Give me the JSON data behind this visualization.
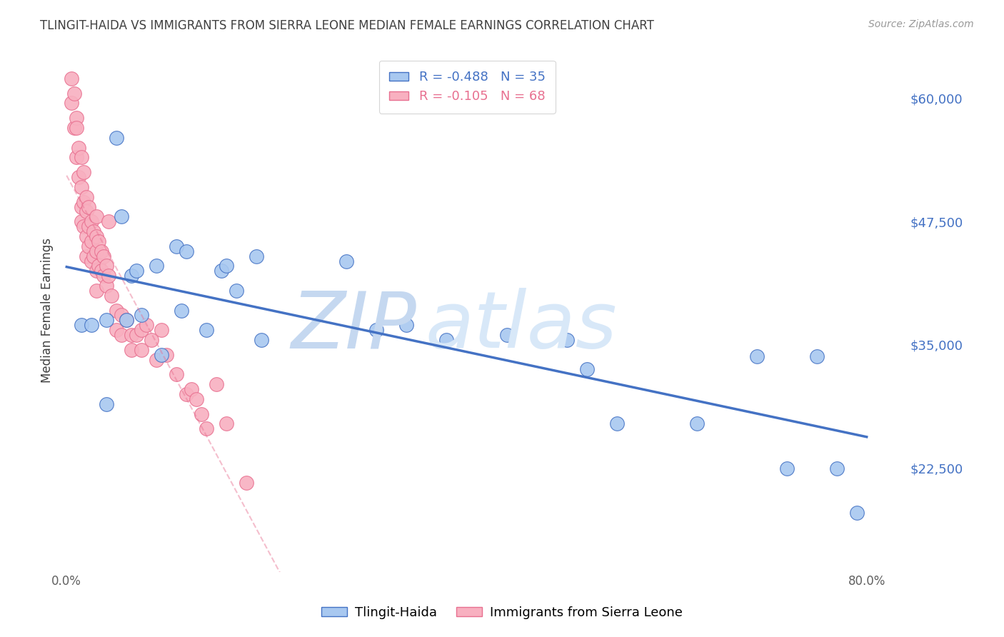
{
  "title": "TLINGIT-HAIDA VS IMMIGRANTS FROM SIERRA LEONE MEDIAN FEMALE EARNINGS CORRELATION CHART",
  "source": "Source: ZipAtlas.com",
  "ylabel": "Median Female Earnings",
  "y_tick_labels": [
    "$22,500",
    "$35,000",
    "$47,500",
    "$60,000"
  ],
  "y_tick_values": [
    22500,
    35000,
    47500,
    60000
  ],
  "ylim": [
    12000,
    65000
  ],
  "xlim": [
    -0.005,
    0.84
  ],
  "x_tick_labels": [
    "0.0%",
    "",
    "",
    "",
    "",
    "",
    "",
    "",
    "80.0%"
  ],
  "x_tick_values": [
    0.0,
    0.1,
    0.2,
    0.3,
    0.4,
    0.5,
    0.6,
    0.7,
    0.8
  ],
  "legend_entries": [
    {
      "label": "R = -0.488   N = 35",
      "color": "#a8c8f0"
    },
    {
      "label": "R = -0.105   N = 68",
      "color": "#f8b0c0"
    }
  ],
  "legend_bottom": [
    "Tlingit-Haida",
    "Immigrants from Sierra Leone"
  ],
  "blue_scatter_x": [
    0.015,
    0.025,
    0.04,
    0.04,
    0.05,
    0.055,
    0.06,
    0.065,
    0.07,
    0.075,
    0.09,
    0.095,
    0.11,
    0.115,
    0.12,
    0.14,
    0.155,
    0.16,
    0.17,
    0.19,
    0.195,
    0.28,
    0.31,
    0.34,
    0.38,
    0.44,
    0.5,
    0.52,
    0.55,
    0.63,
    0.69,
    0.72,
    0.75,
    0.77,
    0.79
  ],
  "blue_scatter_y": [
    37000,
    37000,
    29000,
    37500,
    56000,
    48000,
    37500,
    42000,
    42500,
    38000,
    43000,
    34000,
    45000,
    38500,
    44500,
    36500,
    42500,
    43000,
    40500,
    44000,
    35500,
    43500,
    36500,
    37000,
    35500,
    36000,
    35500,
    32500,
    27000,
    27000,
    33800,
    22500,
    33800,
    22500,
    18000
  ],
  "pink_scatter_x": [
    0.005,
    0.005,
    0.008,
    0.008,
    0.01,
    0.01,
    0.01,
    0.012,
    0.012,
    0.015,
    0.015,
    0.015,
    0.015,
    0.017,
    0.017,
    0.017,
    0.02,
    0.02,
    0.02,
    0.02,
    0.022,
    0.022,
    0.022,
    0.025,
    0.025,
    0.025,
    0.027,
    0.027,
    0.03,
    0.03,
    0.03,
    0.03,
    0.03,
    0.032,
    0.032,
    0.035,
    0.035,
    0.037,
    0.037,
    0.04,
    0.04,
    0.042,
    0.042,
    0.045,
    0.05,
    0.05,
    0.055,
    0.055,
    0.06,
    0.065,
    0.065,
    0.07,
    0.075,
    0.075,
    0.08,
    0.085,
    0.09,
    0.095,
    0.1,
    0.11,
    0.12,
    0.125,
    0.13,
    0.135,
    0.14,
    0.15,
    0.16,
    0.18
  ],
  "pink_scatter_y": [
    62000,
    59500,
    60500,
    57000,
    58000,
    57000,
    54000,
    55000,
    52000,
    54000,
    51000,
    49000,
    47500,
    52500,
    49500,
    47000,
    50000,
    48500,
    46000,
    44000,
    49000,
    47000,
    45000,
    47500,
    45500,
    43500,
    46500,
    44000,
    48000,
    46000,
    44500,
    42500,
    40500,
    45500,
    43000,
    44500,
    42500,
    44000,
    42000,
    43000,
    41000,
    47500,
    42000,
    40000,
    38500,
    36500,
    38000,
    36000,
    37500,
    36000,
    34500,
    36000,
    36500,
    34500,
    37000,
    35500,
    33500,
    36500,
    34000,
    32000,
    30000,
    30500,
    29500,
    28000,
    26500,
    31000,
    27000,
    21000
  ],
  "blue_line_color": "#4472c4",
  "pink_line_color": "#e87090",
  "scatter_blue_color": "#a8c8f0",
  "scatter_pink_color": "#f8b0c0",
  "watermark_top": "ZIP",
  "watermark_bottom": "atlas",
  "watermark_color": "#d0e4f8",
  "title_color": "#404040",
  "ylabel_color": "#404040",
  "ytick_color": "#4472c4",
  "xtick_color": "#606060",
  "grid_color": "#cccccc",
  "background_color": "#ffffff"
}
